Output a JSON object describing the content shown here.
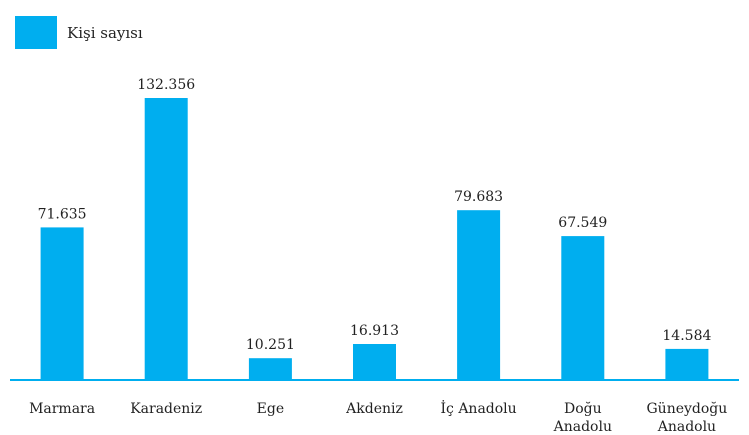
{
  "chart_data": {
    "type": "bar",
    "categories": [
      [
        "Marmara"
      ],
      [
        "Karadeniz"
      ],
      [
        "Ege"
      ],
      [
        "Akdeniz"
      ],
      [
        "İç Anadolu"
      ],
      [
        "Doğu",
        "Anadolu"
      ],
      [
        "Güneydoğu",
        "Anadolu"
      ]
    ],
    "series": [
      {
        "name": "Kişi sayısı",
        "values": [
          71635,
          132356,
          10251,
          16913,
          79683,
          67549,
          14584
        ],
        "labels": [
          "71.635",
          "132.356",
          "10.251",
          "16.913",
          "79.683",
          "67.549",
          "14.584"
        ]
      }
    ],
    "grid": false,
    "legend_position": "top-left"
  },
  "colors": {
    "bar": "#00aeef",
    "axis": "#00aeef",
    "text": "#222222"
  }
}
